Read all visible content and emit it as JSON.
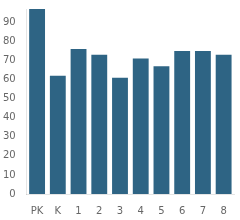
{
  "chart_data": {
    "type": "bar",
    "categories": [
      "PK",
      "K",
      "1",
      "2",
      "3",
      "4",
      "5",
      "6",
      "7",
      "8"
    ],
    "values": [
      97,
      62,
      76,
      73,
      61,
      71,
      67,
      75,
      75,
      73
    ],
    "color": "#2e6484",
    "ylim": [
      0,
      97
    ],
    "yticks": [
      0,
      10,
      20,
      30,
      40,
      50,
      60,
      70,
      80,
      90
    ],
    "grid": false
  }
}
